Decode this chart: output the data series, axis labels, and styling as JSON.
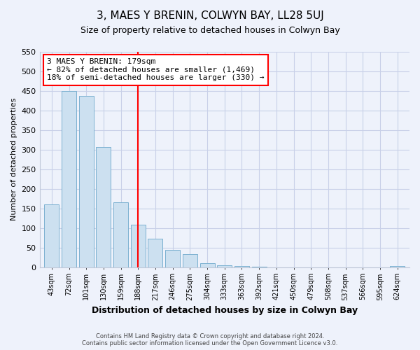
{
  "title": "3, MAES Y BRENIN, COLWYN BAY, LL28 5UJ",
  "subtitle": "Size of property relative to detached houses in Colwyn Bay",
  "xlabel": "Distribution of detached houses by size in Colwyn Bay",
  "ylabel": "Number of detached properties",
  "bar_color": "#cce0f0",
  "bar_edge_color": "#7ab0d0",
  "categories": [
    "43sqm",
    "72sqm",
    "101sqm",
    "130sqm",
    "159sqm",
    "188sqm",
    "217sqm",
    "246sqm",
    "275sqm",
    "304sqm",
    "333sqm",
    "363sqm",
    "392sqm",
    "421sqm",
    "450sqm",
    "479sqm",
    "508sqm",
    "537sqm",
    "566sqm",
    "595sqm",
    "624sqm"
  ],
  "values": [
    160,
    450,
    438,
    307,
    165,
    108,
    73,
    43,
    33,
    10,
    5,
    2,
    1,
    0,
    0,
    0,
    0,
    0,
    0,
    0,
    2
  ],
  "property_line_x": 5.0,
  "annotation_text": "3 MAES Y BRENIN: 179sqm\n← 82% of detached houses are smaller (1,469)\n18% of semi-detached houses are larger (330) →",
  "annotation_box_color": "white",
  "annotation_box_edge_color": "red",
  "vline_color": "red",
  "ylim": [
    0,
    550
  ],
  "yticks": [
    0,
    50,
    100,
    150,
    200,
    250,
    300,
    350,
    400,
    450,
    500,
    550
  ],
  "footer_line1": "Contains HM Land Registry data © Crown copyright and database right 2024.",
  "footer_line2": "Contains public sector information licensed under the Open Government Licence v3.0.",
  "background_color": "#eef2fb"
}
